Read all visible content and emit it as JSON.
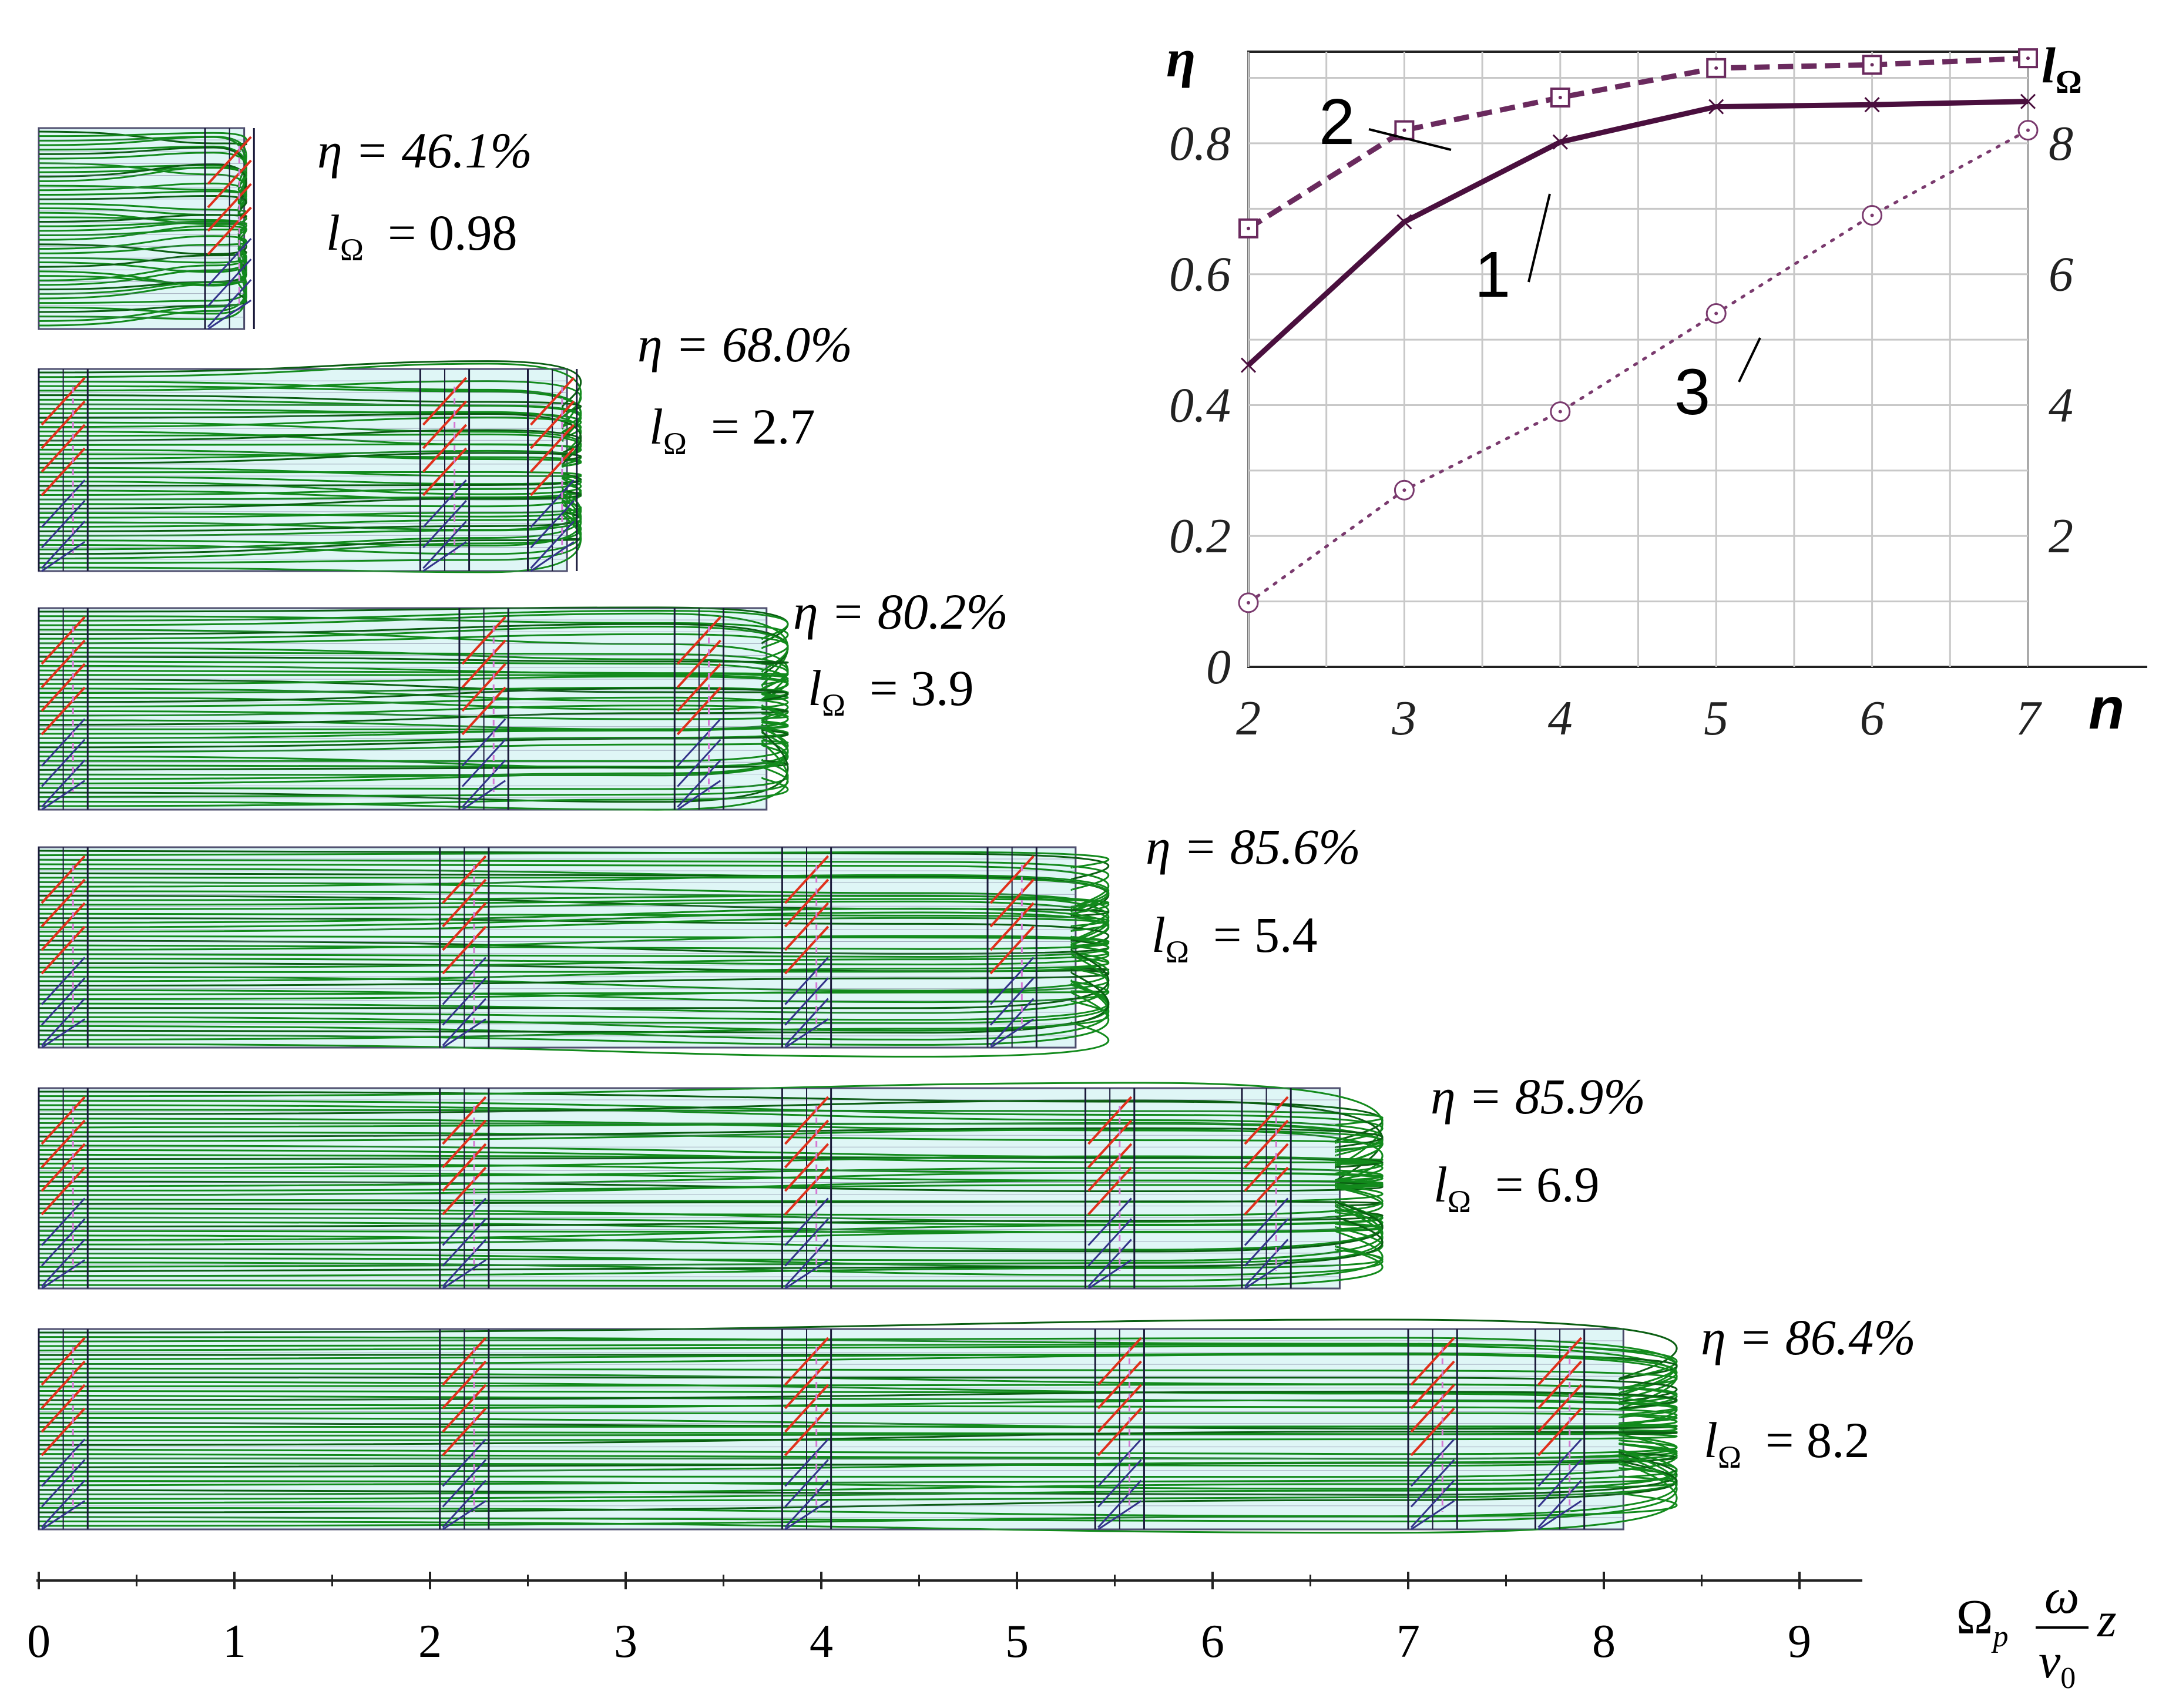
{
  "chart_data": [
    {
      "type": "line",
      "xlabel": "n",
      "ylabel": "η",
      "y2label": "lΩ",
      "x": [
        2,
        3,
        4,
        5,
        6,
        7
      ],
      "xlim": [
        2,
        7
      ],
      "ylim": [
        0,
        0.94
      ],
      "y2lim": [
        0,
        9.4
      ],
      "x_ticks": [
        "2",
        "3",
        "4",
        "5",
        "6",
        "7"
      ],
      "y_ticks": [
        "0",
        "0.2",
        "0.4",
        "0.6",
        "0.8"
      ],
      "y2_ticks": [
        "2",
        "4",
        "6",
        "8"
      ],
      "grid": true,
      "series": [
        {
          "name": "1",
          "axis": "left",
          "style": "solid",
          "marker": "x",
          "color": "#4a0f3e",
          "values": [
            0.461,
            0.68,
            0.802,
            0.856,
            0.859,
            0.864
          ]
        },
        {
          "name": "2",
          "axis": "left",
          "style": "dashed",
          "marker": "square",
          "color": "#6a2a5e",
          "values": [
            0.67,
            0.82,
            0.87,
            0.915,
            0.92,
            0.93
          ]
        },
        {
          "name": "3",
          "axis": "right",
          "style": "dotted",
          "marker": "circle",
          "color": "#7a3a6e",
          "values": [
            0.98,
            2.7,
            3.9,
            5.4,
            6.9,
            8.2
          ]
        }
      ]
    },
    {
      "type": "diagram",
      "xlabel": "Ωp ω/v0 z",
      "x_ticks": [
        "0",
        "1",
        "2",
        "3",
        "4",
        "5",
        "6",
        "7",
        "8",
        "9"
      ],
      "panels": [
        {
          "n": 2,
          "eta": "η = 46.1%",
          "l": "= 0.98",
          "length": 1.05,
          "gaps": [
            0.85
          ]
        },
        {
          "n": 3,
          "eta": "η = 68.0%",
          "l": "= 2.7",
          "length": 2.7,
          "gaps": [
            0.0,
            1.95,
            2.5
          ]
        },
        {
          "n": 4,
          "eta": "η = 80.2%",
          "l": "= 3.9",
          "length": 3.72,
          "gaps": [
            0.0,
            2.15,
            3.25
          ]
        },
        {
          "n": 5,
          "eta": "η = 85.6%",
          "l": "= 5.4",
          "length": 5.3,
          "gaps": [
            0.0,
            2.05,
            3.8,
            4.85
          ]
        },
        {
          "n": 6,
          "eta": "η = 85.9%",
          "l": "= 6.9",
          "length": 6.65,
          "gaps": [
            0.0,
            2.05,
            3.8,
            5.35,
            6.15
          ]
        },
        {
          "n": 7,
          "eta": "η = 86.4%",
          "l": "= 8.2",
          "length": 8.1,
          "gaps": [
            0.0,
            2.05,
            3.8,
            5.4,
            7.0,
            7.65
          ]
        }
      ]
    }
  ],
  "colors": {
    "trajectory": "#128a1c",
    "trajectory_dark": "#0a5e12",
    "background_band": "#dff6f6",
    "gap_red": "#e0301c",
    "gap_blue": "#33338a",
    "gap_pink": "#d47ad4",
    "curve": "#4a0f3e"
  }
}
